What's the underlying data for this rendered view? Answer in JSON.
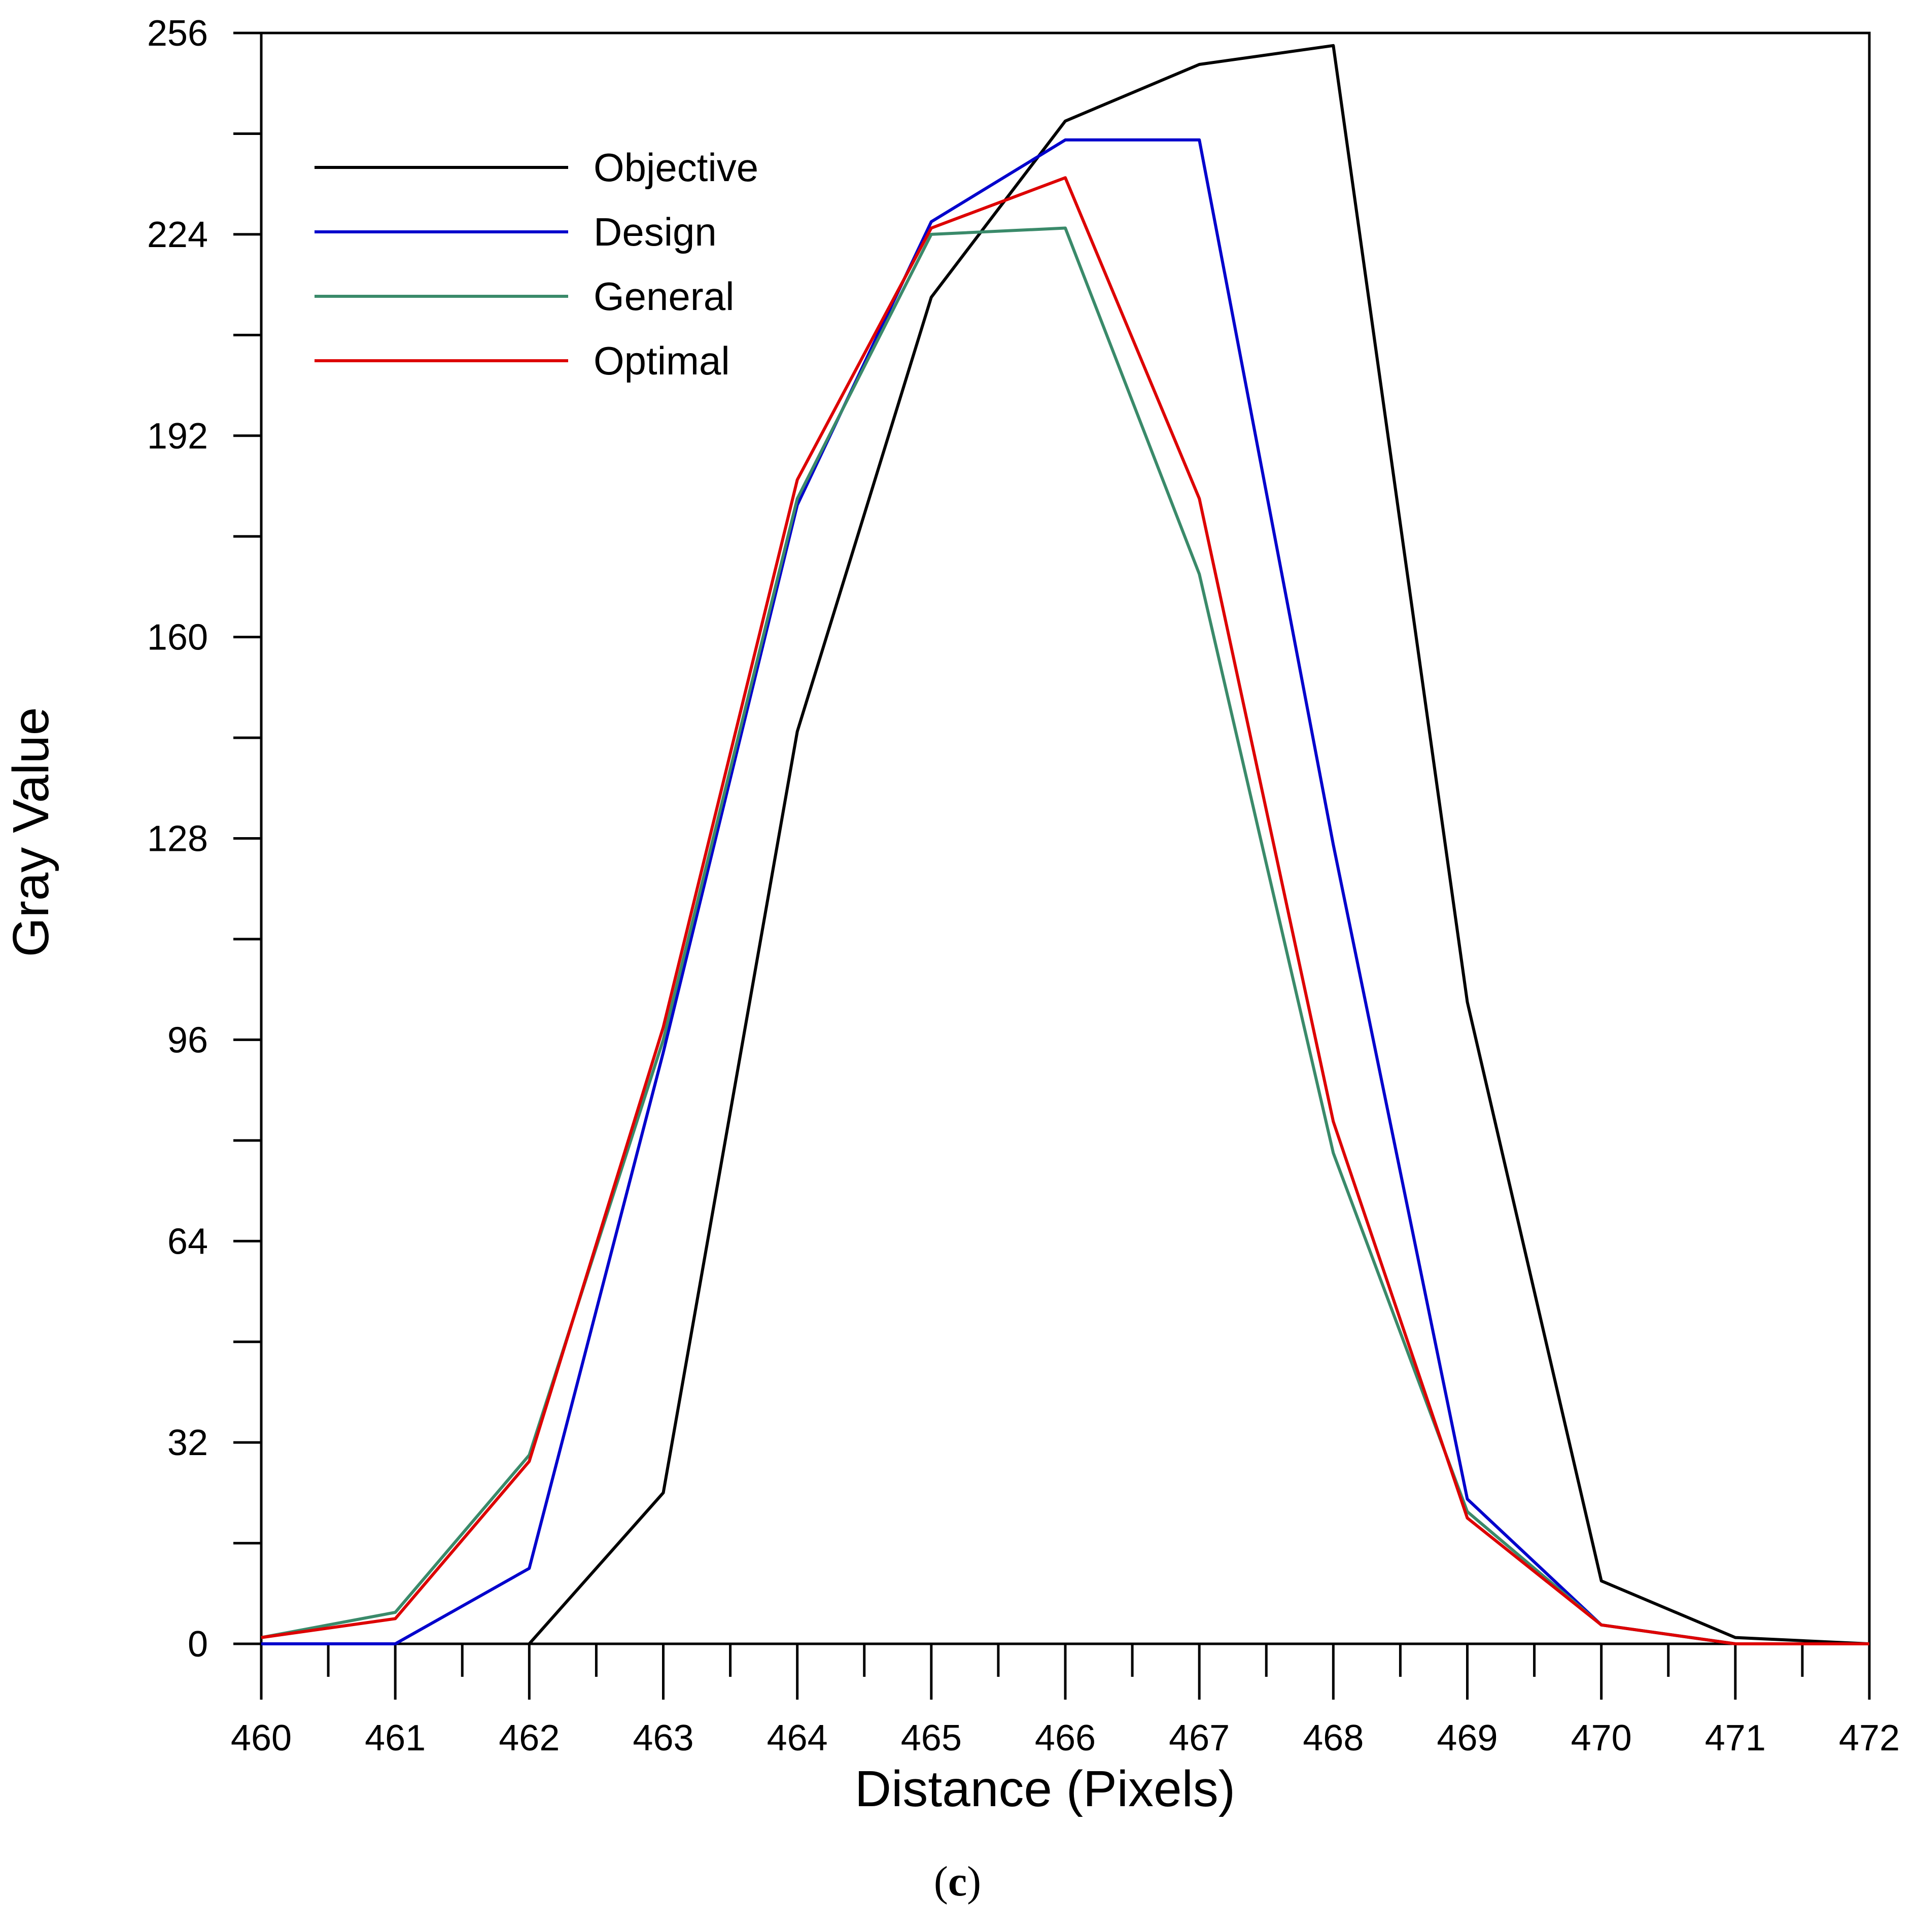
{
  "chart_data": {
    "type": "line",
    "title": "",
    "xlabel": "Distance (Pixels)",
    "ylabel": "Gray Value",
    "xlim": [
      460,
      472
    ],
    "ylim": [
      0,
      256
    ],
    "x_ticks": [
      "460",
      "461",
      "462",
      "463",
      "464",
      "465",
      "466",
      "467",
      "468",
      "469",
      "470",
      "471",
      "472"
    ],
    "y_ticks": [
      "0",
      "32",
      "64",
      "96",
      "128",
      "160",
      "192",
      "224",
      "256"
    ],
    "grid": false,
    "legend_position": "top-left",
    "x": [
      460,
      461,
      462,
      463,
      464,
      465,
      466,
      467,
      468,
      469,
      470,
      471,
      472
    ],
    "series": [
      {
        "name": "Objective",
        "color": "#000000",
        "values": [
          null,
          null,
          0,
          24,
          145,
          214,
          242,
          251,
          254,
          102,
          10,
          1,
          0
        ]
      },
      {
        "name": "Design",
        "color": "#0000cc",
        "values": [
          0,
          0,
          12,
          94,
          181,
          226,
          239,
          239,
          127,
          23,
          3,
          0,
          0
        ]
      },
      {
        "name": "General",
        "color": "#3a8a6a",
        "values": [
          1,
          5,
          30,
          96,
          182,
          224,
          225,
          170,
          78,
          21,
          3,
          0,
          0
        ]
      },
      {
        "name": "Optimal",
        "color": "#dd0000",
        "values": [
          1,
          4,
          29,
          98,
          185,
          225,
          233,
          182,
          83,
          20,
          3,
          0,
          0
        ]
      }
    ]
  },
  "caption": {
    "open": "(",
    "letter": "c",
    "close": ")"
  }
}
